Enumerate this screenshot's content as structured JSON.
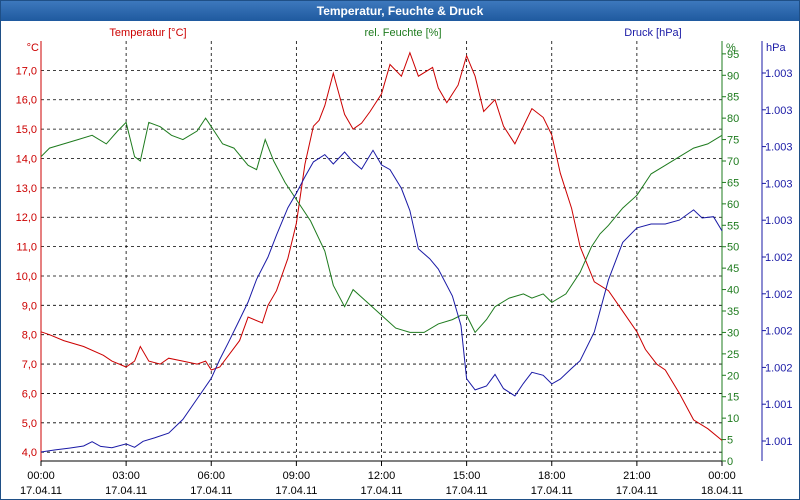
{
  "window": {
    "title": "Temperatur, Feuchte & Druck"
  },
  "colors": {
    "temperature": "#cc0000",
    "humidity": "#1e7b1e",
    "pressure": "#1a1aa6",
    "titlebar": "#2a63a8"
  },
  "chart_data": {
    "type": "line",
    "title": "Temperatur, Feuchte & Druck",
    "grid": true,
    "x_ticks": [
      {
        "time": "00:00",
        "date": "17.04.11"
      },
      {
        "time": "03:00",
        "date": "17.04.11"
      },
      {
        "time": "06:00",
        "date": "17.04.11"
      },
      {
        "time": "09:00",
        "date": "17.04.11"
      },
      {
        "time": "12:00",
        "date": "17.04.11"
      },
      {
        "time": "15:00",
        "date": "17.04.11"
      },
      {
        "time": "18:00",
        "date": "17.04.11"
      },
      {
        "time": "21:00",
        "date": "17.04.11"
      },
      {
        "time": "00:00",
        "date": "18.04.11"
      }
    ],
    "xlim": [
      0,
      24
    ],
    "axes": {
      "temperature": {
        "label": "Temperatur [°C]",
        "unit": "°C",
        "ylim": [
          3.7,
          18.0
        ],
        "ticks": [
          "4,0",
          "5,0",
          "6,0",
          "7,0",
          "8,0",
          "9,0",
          "10,0",
          "11,0",
          "12,0",
          "13,0",
          "14,0",
          "15,0",
          "16,0",
          "17,0"
        ]
      },
      "humidity": {
        "label": "rel. Feuchte [%]",
        "unit": "%",
        "ylim": [
          0,
          98
        ],
        "ticks": [
          "0",
          "5",
          "10",
          "15",
          "20",
          "25",
          "30",
          "35",
          "40",
          "45",
          "50",
          "55",
          "60",
          "65",
          "70",
          "75",
          "80",
          "85",
          "90",
          "95"
        ]
      },
      "pressure": {
        "label": "Druck [hPa]",
        "unit": "hPa",
        "ticks": [
          "1.001",
          "1.001",
          "1.002",
          "1.002",
          "1.002",
          "1.002",
          "1.003",
          "1.003",
          "1.003",
          "1.003",
          "1.003"
        ]
      }
    },
    "series": [
      {
        "name": "Temperatur [°C]",
        "axis": "temperature",
        "x": [
          0,
          0.3,
          0.8,
          1.5,
          2.2,
          2.5,
          3,
          3.3,
          3.5,
          3.8,
          4.2,
          4.5,
          5,
          5.5,
          5.8,
          6,
          6.3,
          7,
          7.3,
          7.8,
          8,
          8.3,
          8.7,
          9,
          9.3,
          9.6,
          9.8,
          10,
          10.3,
          10.7,
          11,
          11.3,
          11.6,
          12,
          12.3,
          12.7,
          13,
          13.3,
          13.8,
          14,
          14.3,
          14.7,
          15,
          15.3,
          15.6,
          16,
          16.3,
          16.7,
          17,
          17.3,
          17.7,
          18,
          18.3,
          18.7,
          19,
          19.5,
          20,
          20.5,
          21,
          21.3,
          21.7,
          22,
          22.5,
          23,
          23.5,
          24
        ],
        "y": [
          8.1,
          8.0,
          7.8,
          7.6,
          7.3,
          7.1,
          6.9,
          7.1,
          7.6,
          7.1,
          7.0,
          7.2,
          7.1,
          7.0,
          7.1,
          6.8,
          6.9,
          7.8,
          8.6,
          8.4,
          9.0,
          9.5,
          10.6,
          11.8,
          13.8,
          15.1,
          15.3,
          15.8,
          16.9,
          15.5,
          15.0,
          15.2,
          15.6,
          16.2,
          17.2,
          16.8,
          17.6,
          16.8,
          17.1,
          16.4,
          15.9,
          16.5,
          17.5,
          16.8,
          15.6,
          16.0,
          15.1,
          14.5,
          15.1,
          15.7,
          15.4,
          14.8,
          13.5,
          12.3,
          11.0,
          9.8,
          9.5,
          8.8,
          8.1,
          7.5,
          7.0,
          6.8,
          6.0,
          5.1,
          4.8,
          4.4
        ]
      },
      {
        "name": "rel. Feuchte [%]",
        "axis": "humidity",
        "x": [
          0,
          0.3,
          0.8,
          1.3,
          1.8,
          2.3,
          2.7,
          3,
          3.3,
          3.5,
          3.8,
          4.2,
          4.6,
          5,
          5.5,
          5.8,
          6,
          6.4,
          6.8,
          7.3,
          7.6,
          7.9,
          8.2,
          8.6,
          9,
          9.5,
          10,
          10.3,
          10.7,
          11,
          11.5,
          12,
          12.5,
          13,
          13.5,
          14,
          14.5,
          14.8,
          15,
          15.3,
          15.7,
          16,
          16.5,
          17,
          17.3,
          17.7,
          18,
          18.5,
          19,
          19.4,
          19.7,
          20,
          20.5,
          21,
          21.5,
          22,
          22.5,
          23,
          23.5,
          24
        ],
        "y": [
          71,
          73,
          74,
          75,
          76,
          74,
          77,
          79,
          71,
          70,
          79,
          78,
          76,
          75,
          77,
          80,
          78,
          74,
          73,
          69,
          68,
          75,
          70,
          65,
          61,
          56,
          49,
          41,
          36,
          40,
          37,
          34,
          31,
          30,
          30,
          32,
          33,
          34,
          34,
          30,
          33,
          36,
          38,
          39,
          38,
          39,
          37,
          39,
          44,
          50,
          53,
          55,
          59,
          62,
          67,
          69,
          71,
          73,
          74,
          76
        ]
      },
      {
        "name": "Druck [hPa]",
        "axis": "pressure",
        "x": [
          0,
          0.5,
          1,
          1.5,
          1.8,
          2.1,
          2.5,
          3,
          3.3,
          3.6,
          4,
          4.5,
          5,
          5.5,
          6,
          6.3,
          6.6,
          7,
          7.3,
          7.6,
          8,
          8.3,
          8.7,
          9,
          9.3,
          9.6,
          10,
          10.3,
          10.7,
          11,
          11.3,
          11.7,
          12,
          12.3,
          12.7,
          13,
          13.3,
          13.7,
          14,
          14.5,
          14.8,
          15,
          15.3,
          15.7,
          16,
          16.3,
          16.7,
          17,
          17.3,
          17.7,
          18,
          18.3,
          18.7,
          19,
          19.5,
          20,
          20.5,
          21,
          21.5,
          22,
          22.5,
          23,
          23.3,
          23.7,
          24
        ],
        "y": [
          2.1,
          2.6,
          3.0,
          3.5,
          4.5,
          3.4,
          3.1,
          4.0,
          3.2,
          4.6,
          5.4,
          6.5,
          9.7,
          14.5,
          19.3,
          23.7,
          27.6,
          33.0,
          37.1,
          42.4,
          47.6,
          52.7,
          59.1,
          62.5,
          66.3,
          69.8,
          71.5,
          69.3,
          72.1,
          69.8,
          68.1,
          72.5,
          69.1,
          68.0,
          63.6,
          58.4,
          49.5,
          47.2,
          44.8,
          38.5,
          31.6,
          19.2,
          16.6,
          17.5,
          20.2,
          16.9,
          15.2,
          18.1,
          20.7,
          20.0,
          18.0,
          19.1,
          21.6,
          23.4,
          30.1,
          42.3,
          51.0,
          54.4,
          55.3,
          55.3,
          56.2,
          58.6,
          56.7,
          57.0,
          53.7
        ]
      }
    ]
  }
}
